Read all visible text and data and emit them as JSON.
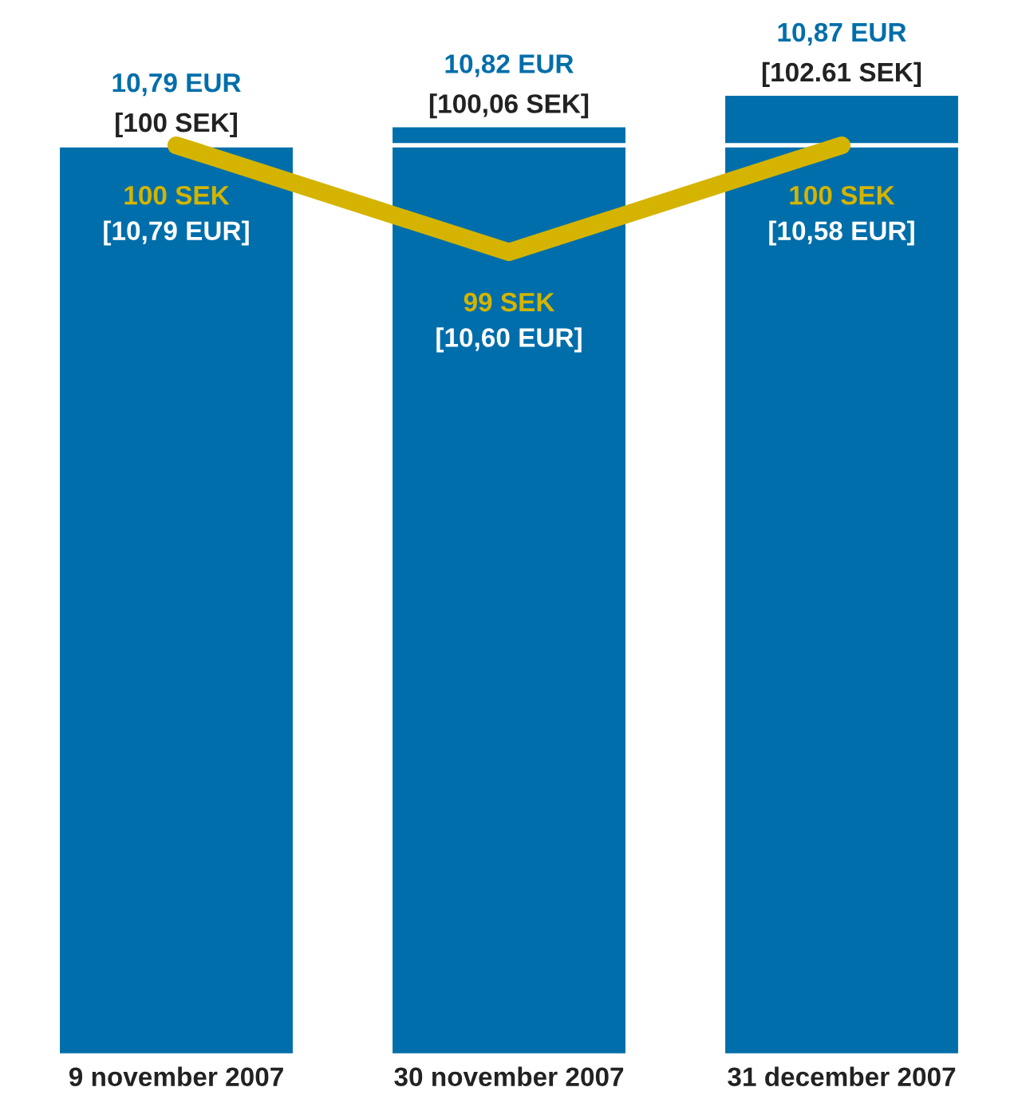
{
  "chart_data": {
    "type": "bar",
    "categories": [
      "9 november 2007",
      "30 november 2007",
      "31 december 2007"
    ],
    "tick_labels": "x",
    "grid": false,
    "legend": false,
    "series": [
      {
        "color": "#006eaa",
        "values": [
          10.79,
          10.82,
          10.87
        ],
        "value_labels": [
          "10,79 EUR\n[100 SEK]",
          "10,82 EUR\n[100,06 SEK]",
          "10,87 EUR\n[102.61 SEK]"
        ]
      },
      {
        "type": "line",
        "axis": "y2",
        "color": "#d4b400",
        "values": [
          100,
          99,
          100
        ],
        "value_labels": [
          "100 SEK\n[10,79 EUR]",
          "99 SEK\n[10,60 EUR]",
          "100 SEK\n[10,58 EUR]"
        ]
      }
    ],
    "ref_lines": [
      {
        "axis": "y2",
        "value": 100,
        "color": "#ffffff"
      }
    ]
  }
}
